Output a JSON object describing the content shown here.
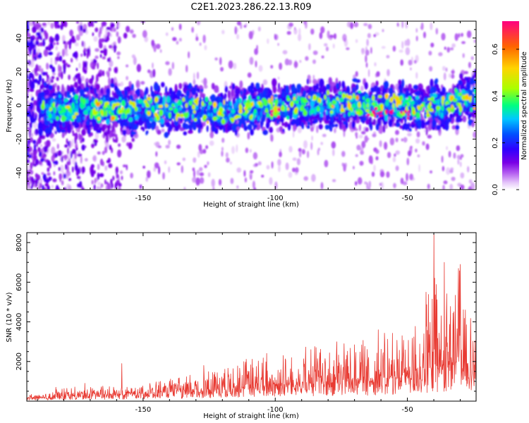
{
  "title": "C2E1.2023.286.22.13.R09",
  "chart_data": [
    {
      "type": "heatmap",
      "title": "C2E1.2023.286.22.13.R09",
      "xlabel": "Height of straight line (km)",
      "ylabel": "Frequency (Hz)",
      "xlim": [
        -194,
        -24
      ],
      "ylim": [
        -50,
        50
      ],
      "x_ticks": [
        -150,
        -100,
        -50
      ],
      "y_ticks": [
        -40,
        -20,
        0,
        20,
        40
      ],
      "colorbar": {
        "label": "Normalized spectral amplitude",
        "range": [
          0,
          0.72
        ],
        "ticks": [
          0.0,
          0.2,
          0.4,
          0.6
        ],
        "tick_labels": [
          "0.0",
          "0.2",
          "0.4",
          "0.6"
        ],
        "colormap": [
          "#ffffff",
          "#e6c8fa",
          "#b35cf0",
          "#7a00e6",
          "#2e00ff",
          "#0050ff",
          "#00c8ff",
          "#00ff80",
          "#aaff00",
          "#ffd400",
          "#ff6400",
          "#ff0080"
        ]
      },
      "band": {
        "description_note": "Dominant spectral band near 0 Hz drifting from about -4 Hz to about +3 Hz",
        "center_hz": [
          [
            -190,
            -2
          ],
          [
            -150,
            -2
          ],
          [
            -120,
            -3
          ],
          [
            -100,
            -1
          ],
          [
            -80,
            1
          ],
          [
            -60,
            0
          ],
          [
            -45,
            -2
          ],
          [
            -30,
            3
          ],
          [
            -24,
            4
          ]
        ],
        "hotspots_x": [
          -100,
          -64,
          -61,
          -57,
          -51
        ]
      }
    },
    {
      "type": "line",
      "xlabel": "Height of straight line (km)",
      "ylabel": "SNR (10 * v/v)",
      "xlim": [
        -194,
        -24
      ],
      "ylim": [
        0,
        8500
      ],
      "x_ticks": [
        -150,
        -100,
        -50
      ],
      "y_ticks": [
        2000,
        4000,
        6000,
        8000
      ],
      "series": [
        {
          "name": "SNR",
          "color": "#e83a32",
          "envelope_x": [
            -194,
            -180,
            -160,
            -140,
            -120,
            -100,
            -80,
            -60,
            -50,
            -45,
            -40,
            -35,
            -30,
            -25
          ],
          "envelope_median": [
            150,
            220,
            300,
            400,
            550,
            700,
            850,
            1000,
            1150,
            1300,
            1500,
            1600,
            1800,
            1500
          ],
          "envelope_peak": [
            300,
            700,
            800,
            1100,
            1900,
            2600,
            3000,
            3400,
            3700,
            4600,
            7000,
            6600,
            7000,
            4200
          ],
          "spikes": [
            [
              -183,
              700
            ],
            [
              -172,
              900
            ],
            [
              -158,
              1900
            ],
            [
              -127,
              1800
            ],
            [
              -97,
              2300
            ],
            [
              -74,
              2900
            ],
            [
              -61,
              3600
            ],
            [
              -52,
              3300
            ],
            [
              -43,
              5500
            ],
            [
              -40,
              8400
            ],
            [
              -36,
              7000
            ],
            [
              -30,
              6900
            ],
            [
              -28,
              4600
            ]
          ]
        }
      ]
    }
  ]
}
